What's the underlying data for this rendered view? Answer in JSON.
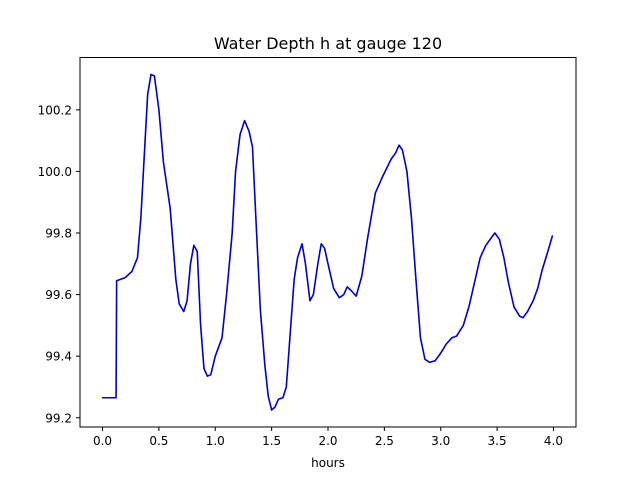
{
  "chart_data": {
    "type": "line",
    "title": "Water Depth h at gauge 120",
    "xlabel": "hours",
    "ylabel": "",
    "xlim": [
      -0.2,
      4.2
    ],
    "ylim": [
      99.17,
      100.37
    ],
    "xticks": [
      0.0,
      0.5,
      1.0,
      1.5,
      2.0,
      2.5,
      3.0,
      3.5,
      4.0
    ],
    "xtick_labels": [
      "0.0",
      "0.5",
      "1.0",
      "1.5",
      "2.0",
      "2.5",
      "3.0",
      "3.5",
      "4.0"
    ],
    "yticks": [
      99.2,
      99.4,
      99.6,
      99.8,
      100.0,
      100.2
    ],
    "ytick_labels": [
      "99.2",
      "99.4",
      "99.6",
      "99.8",
      "100.0",
      "100.2"
    ],
    "grid": false,
    "legend": "none",
    "series": [
      {
        "color": "#0000cc",
        "points": [
          [
            0.0,
            99.265
          ],
          [
            0.12,
            99.265
          ],
          [
            0.125,
            99.645
          ],
          [
            0.2,
            99.655
          ],
          [
            0.26,
            99.675
          ],
          [
            0.31,
            99.72
          ],
          [
            0.34,
            99.85
          ],
          [
            0.37,
            100.05
          ],
          [
            0.4,
            100.25
          ],
          [
            0.43,
            100.315
          ],
          [
            0.46,
            100.31
          ],
          [
            0.5,
            100.2
          ],
          [
            0.54,
            100.03
          ],
          [
            0.6,
            99.88
          ],
          [
            0.65,
            99.65
          ],
          [
            0.68,
            99.57
          ],
          [
            0.72,
            99.545
          ],
          [
            0.75,
            99.58
          ],
          [
            0.78,
            99.7
          ],
          [
            0.81,
            99.76
          ],
          [
            0.84,
            99.74
          ],
          [
            0.87,
            99.5
          ],
          [
            0.9,
            99.36
          ],
          [
            0.93,
            99.335
          ],
          [
            0.96,
            99.34
          ],
          [
            1.0,
            99.4
          ],
          [
            1.06,
            99.46
          ],
          [
            1.1,
            99.6
          ],
          [
            1.15,
            99.8
          ],
          [
            1.18,
            100.0
          ],
          [
            1.22,
            100.12
          ],
          [
            1.26,
            100.165
          ],
          [
            1.3,
            100.13
          ],
          [
            1.33,
            100.08
          ],
          [
            1.36,
            99.85
          ],
          [
            1.4,
            99.55
          ],
          [
            1.44,
            99.37
          ],
          [
            1.47,
            99.27
          ],
          [
            1.5,
            99.225
          ],
          [
            1.53,
            99.235
          ],
          [
            1.56,
            99.26
          ],
          [
            1.6,
            99.265
          ],
          [
            1.63,
            99.3
          ],
          [
            1.66,
            99.45
          ],
          [
            1.7,
            99.65
          ],
          [
            1.73,
            99.72
          ],
          [
            1.77,
            99.765
          ],
          [
            1.8,
            99.7
          ],
          [
            1.84,
            99.58
          ],
          [
            1.87,
            99.6
          ],
          [
            1.91,
            99.7
          ],
          [
            1.94,
            99.765
          ],
          [
            1.97,
            99.75
          ],
          [
            2.0,
            99.7
          ],
          [
            2.05,
            99.62
          ],
          [
            2.1,
            99.59
          ],
          [
            2.14,
            99.6
          ],
          [
            2.17,
            99.625
          ],
          [
            2.2,
            99.615
          ],
          [
            2.25,
            99.595
          ],
          [
            2.3,
            99.66
          ],
          [
            2.35,
            99.78
          ],
          [
            2.42,
            99.93
          ],
          [
            2.48,
            99.98
          ],
          [
            2.52,
            100.01
          ],
          [
            2.56,
            100.04
          ],
          [
            2.6,
            100.06
          ],
          [
            2.63,
            100.085
          ],
          [
            2.66,
            100.07
          ],
          [
            2.7,
            100.0
          ],
          [
            2.74,
            99.85
          ],
          [
            2.78,
            99.65
          ],
          [
            2.82,
            99.46
          ],
          [
            2.86,
            99.39
          ],
          [
            2.9,
            99.38
          ],
          [
            2.95,
            99.385
          ],
          [
            3.0,
            99.41
          ],
          [
            3.05,
            99.44
          ],
          [
            3.1,
            99.46
          ],
          [
            3.14,
            99.465
          ],
          [
            3.2,
            99.5
          ],
          [
            3.25,
            99.56
          ],
          [
            3.3,
            99.64
          ],
          [
            3.35,
            99.72
          ],
          [
            3.4,
            99.76
          ],
          [
            3.45,
            99.785
          ],
          [
            3.48,
            99.8
          ],
          [
            3.52,
            99.78
          ],
          [
            3.56,
            99.72
          ],
          [
            3.6,
            99.64
          ],
          [
            3.65,
            99.56
          ],
          [
            3.7,
            99.53
          ],
          [
            3.73,
            99.525
          ],
          [
            3.77,
            99.545
          ],
          [
            3.82,
            99.58
          ],
          [
            3.86,
            99.62
          ],
          [
            3.9,
            99.68
          ],
          [
            3.95,
            99.74
          ],
          [
            3.99,
            99.79
          ]
        ]
      }
    ]
  }
}
